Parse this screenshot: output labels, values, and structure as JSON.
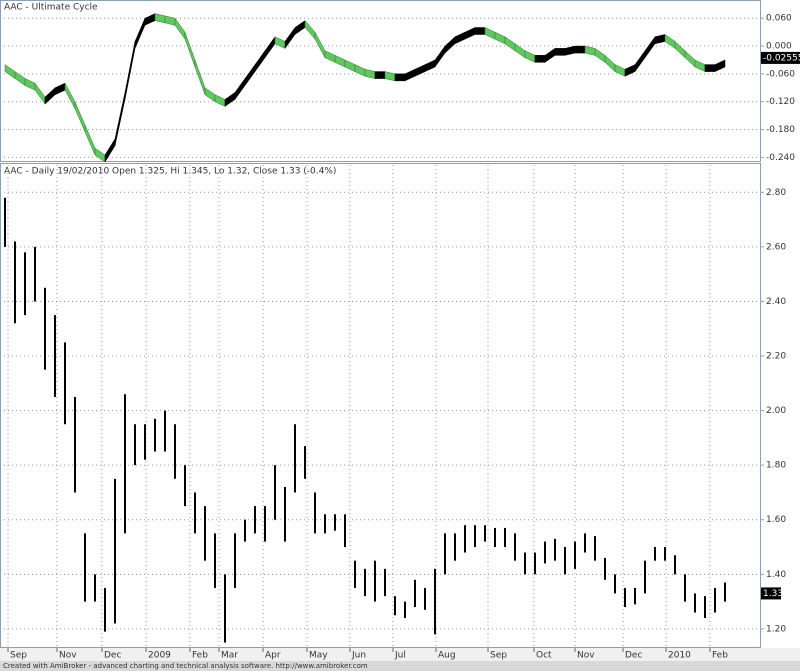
{
  "chart_data": [
    {
      "type": "ribbon",
      "title": "AAC - Ultimate Cycle",
      "xlim": [
        -0.5,
        75.5
      ],
      "ylim": [
        -0.25,
        0.095
      ],
      "yticks": [
        {
          "value": 0.06,
          "label": "0.060"
        },
        {
          "value": 0,
          "label": "0.000"
        },
        {
          "value": -0.06,
          "label": "-0.060"
        },
        {
          "value": -0.12,
          "label": "-0.120"
        },
        {
          "value": -0.18,
          "label": "-0.180"
        },
        {
          "value": -0.24,
          "label": "-0.240"
        }
      ],
      "values": [
        -0.04,
        -0.055,
        -0.07,
        -0.08,
        -0.11,
        -0.09,
        -0.08,
        -0.12,
        -0.17,
        -0.22,
        -0.235,
        -0.2,
        -0.1,
        0.01,
        0.06,
        0.07,
        0.065,
        0.06,
        0.03,
        -0.03,
        -0.09,
        -0.105,
        -0.115,
        -0.1,
        -0.07,
        -0.04,
        -0.01,
        0.02,
        0.01,
        0.04,
        0.055,
        0.03,
        -0.01,
        -0.02,
        -0.03,
        -0.04,
        -0.05,
        -0.055,
        -0.055,
        -0.06,
        -0.06,
        -0.05,
        -0.04,
        -0.03,
        0.0,
        0.02,
        0.03,
        0.04,
        0.04,
        0.03,
        0.02,
        0.005,
        -0.01,
        -0.02,
        -0.02,
        -0.005,
        -0.005,
        0.0,
        0.0,
        -0.005,
        -0.02,
        -0.04,
        -0.05,
        -0.04,
        -0.01,
        0.02,
        0.025,
        0.01,
        -0.01,
        -0.03,
        -0.04,
        -0.04,
        -0.03
      ],
      "up_color": "#000000",
      "down_color": "#5fc85f",
      "last_label": {
        "value": -0.02555,
        "label": "-0.025550"
      },
      "grid": true
    },
    {
      "type": "hilo",
      "title": "AAC - Daily 19/02/2010 Open 1.325, Hi 1.345, Lo 1.32, Close 1.33 (-0.4%)",
      "xlim": [
        -0.5,
        75.5
      ],
      "xticks": [
        {
          "value": 0.3,
          "label": "Sep"
        },
        {
          "value": 5.2,
          "label": "Nov"
        },
        {
          "value": 9.7,
          "label": "Dec"
        },
        {
          "value": 14.1,
          "label": "2009"
        },
        {
          "value": 18.5,
          "label": "Feb"
        },
        {
          "value": 21.4,
          "label": "Mar"
        },
        {
          "value": 25.8,
          "label": "Apr"
        },
        {
          "value": 30.2,
          "label": "May"
        },
        {
          "value": 34.5,
          "label": "Jun"
        },
        {
          "value": 38.8,
          "label": "Jul"
        },
        {
          "value": 43.1,
          "label": "Aug"
        },
        {
          "value": 48.3,
          "label": "Sep"
        },
        {
          "value": 52.9,
          "label": "Oct"
        },
        {
          "value": 57,
          "label": "Nov"
        },
        {
          "value": 61.8,
          "label": "Dec"
        },
        {
          "value": 66.1,
          "label": "2010"
        },
        {
          "value": 70.5,
          "label": "Feb"
        }
      ],
      "ylim": [
        1.13,
        2.9
      ],
      "yticks": [
        {
          "value": 2.8,
          "label": "2.80"
        },
        {
          "value": 2.6,
          "label": "2.60"
        },
        {
          "value": 2.4,
          "label": "2.40"
        },
        {
          "value": 2.2,
          "label": "2.20"
        },
        {
          "value": 2.0,
          "label": "2.00"
        },
        {
          "value": 1.8,
          "label": "1.80"
        },
        {
          "value": 1.6,
          "label": "1.60"
        },
        {
          "value": 1.4,
          "label": "1.40"
        },
        {
          "value": 1.2,
          "label": "1.20"
        }
      ],
      "high": [
        2.78,
        2.62,
        2.58,
        2.6,
        2.45,
        2.35,
        2.25,
        2.05,
        1.55,
        1.4,
        1.35,
        1.75,
        2.06,
        1.95,
        1.95,
        1.97,
        2.0,
        1.95,
        1.8,
        1.7,
        1.65,
        1.55,
        1.4,
        1.55,
        1.6,
        1.65,
        1.65,
        1.8,
        1.72,
        1.95,
        1.87,
        1.7,
        1.62,
        1.62,
        1.62,
        1.45,
        1.42,
        1.45,
        1.42,
        1.32,
        1.3,
        1.38,
        1.35,
        1.42,
        1.55,
        1.55,
        1.58,
        1.58,
        1.58,
        1.57,
        1.57,
        1.55,
        1.48,
        1.48,
        1.52,
        1.53,
        1.5,
        1.52,
        1.55,
        1.54,
        1.46,
        1.4,
        1.35,
        1.35,
        1.45,
        1.5,
        1.5,
        1.47,
        1.4,
        1.33,
        1.32,
        1.35,
        1.37
      ],
      "low": [
        2.6,
        2.32,
        2.35,
        2.4,
        2.15,
        2.05,
        1.95,
        1.7,
        1.3,
        1.3,
        1.19,
        1.22,
        1.55,
        1.8,
        1.82,
        1.85,
        1.85,
        1.75,
        1.65,
        1.55,
        1.45,
        1.35,
        1.15,
        1.35,
        1.52,
        1.55,
        1.52,
        1.6,
        1.52,
        1.7,
        1.75,
        1.55,
        1.55,
        1.56,
        1.5,
        1.35,
        1.32,
        1.3,
        1.32,
        1.25,
        1.24,
        1.28,
        1.27,
        1.18,
        1.4,
        1.45,
        1.48,
        1.5,
        1.52,
        1.5,
        1.5,
        1.45,
        1.4,
        1.4,
        1.44,
        1.45,
        1.4,
        1.42,
        1.48,
        1.45,
        1.38,
        1.33,
        1.28,
        1.29,
        1.33,
        1.45,
        1.45,
        1.4,
        1.3,
        1.26,
        1.24,
        1.26,
        1.3
      ],
      "color": "#000000",
      "last_label": 1.33,
      "grid": true
    }
  ],
  "footer": "Created with AmiBroker - advanced charting and technical analysis software. http://www.amibroker.com"
}
